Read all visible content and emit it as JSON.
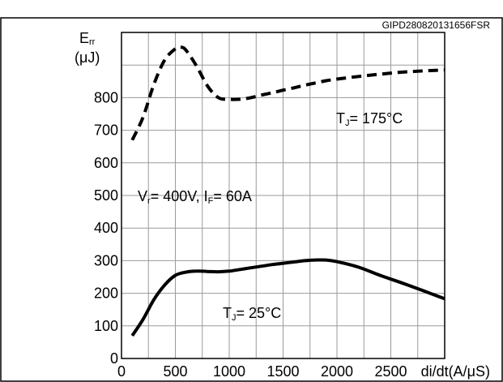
{
  "chart_data": {
    "type": "line",
    "title": "",
    "figure_code": "GIPD280820131656FSR",
    "ylabel": {
      "main": "E",
      "sub": "rr",
      "unit": "(μJ)"
    },
    "xlabel": "di/dt(A/μS)",
    "xlim": [
      0,
      3000
    ],
    "ylim": [
      0,
      1000
    ],
    "x_ticks": [
      0,
      500,
      1000,
      1500,
      2000,
      2500
    ],
    "y_ticks": [
      0,
      100,
      200,
      300,
      400,
      500,
      600,
      700,
      800
    ],
    "grid": true,
    "conditions": {
      "v_main": "V",
      "v_sub": "r",
      "v_value": "= 400V, ",
      "i_main": "I",
      "i_sub": "F",
      "i_value": "= 60A"
    },
    "series": [
      {
        "label_main": "T",
        "label_sub": "J",
        "label_value": "= 175°C",
        "style": "dashed",
        "x": [
          100,
          200,
          300,
          400,
          500,
          550,
          600,
          700,
          800,
          900,
          1000,
          1100,
          1200,
          1300,
          1400,
          1500,
          1600,
          1700,
          1800,
          1900,
          2000,
          2200,
          2400,
          2600,
          2800,
          3000
        ],
        "y": [
          670,
          740,
          840,
          915,
          950,
          955,
          945,
          895,
          835,
          800,
          795,
          795,
          800,
          808,
          815,
          823,
          830,
          838,
          845,
          852,
          857,
          865,
          872,
          878,
          882,
          885
        ]
      },
      {
        "label_main": "T",
        "label_sub": "J",
        "label_value": "= 25°C",
        "style": "solid",
        "x": [
          100,
          200,
          300,
          400,
          500,
          600,
          700,
          800,
          900,
          1000,
          1100,
          1200,
          1300,
          1400,
          1500,
          1600,
          1700,
          1800,
          1900,
          2000,
          2200,
          2400,
          2600,
          2800,
          3000
        ],
        "y": [
          70,
          120,
          180,
          225,
          255,
          265,
          268,
          267,
          266,
          268,
          273,
          278,
          283,
          288,
          292,
          296,
          300,
          302,
          302,
          297,
          280,
          255,
          232,
          208,
          183
        ]
      }
    ]
  }
}
